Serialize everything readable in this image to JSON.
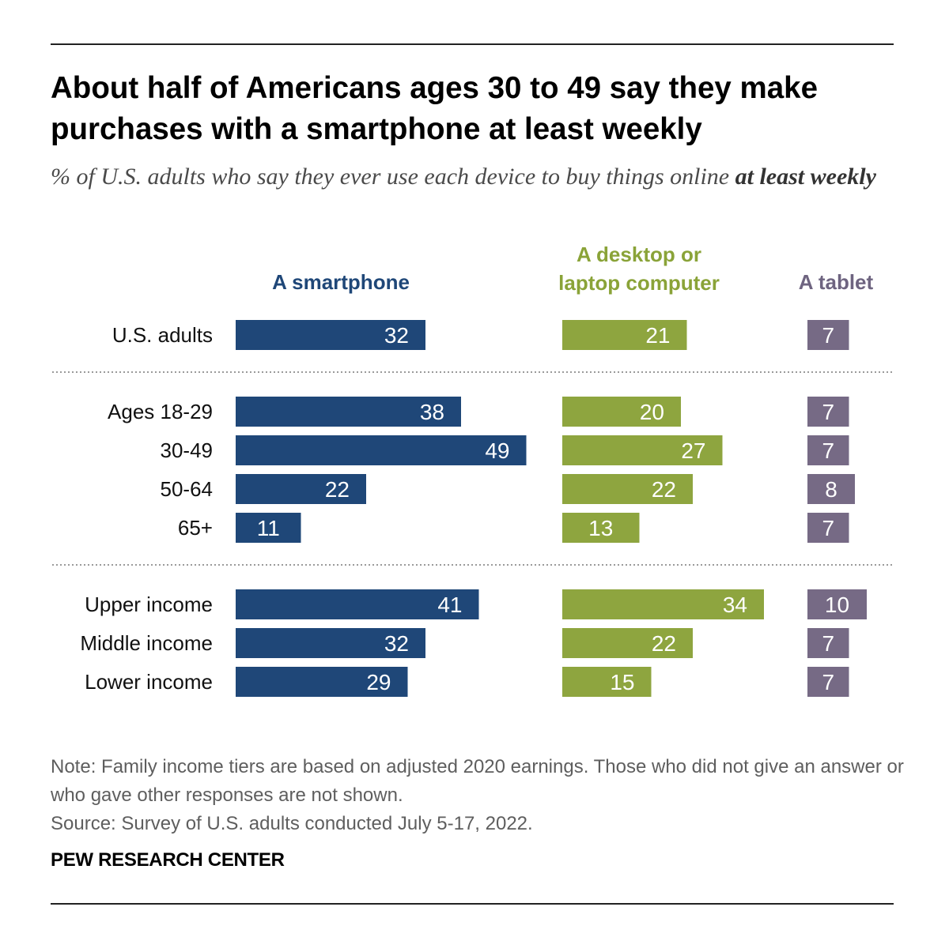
{
  "title": "About half of Americans ages 30 to 49 say they make purchases with a smartphone at least weekly",
  "subtitle_prefix": "% of U.S. adults who say they ever use each device to buy things online ",
  "subtitle_bold": "at least weekly",
  "note": "Note: Family income tiers are based on adjusted 2020 earnings. Those who did not give an answer or who gave other responses are not shown.",
  "source": "Source: Survey of U.S. adults conducted July 5-17, 2022.",
  "brand": "PEW RESEARCH CENTER",
  "colors": {
    "smartphone": "#1f4778",
    "desktop": "#8ea53f",
    "tablet": "#766a85",
    "smartphone_header": "#1f4778",
    "desktop_header": "#8aa338",
    "tablet_header": "#6e6480",
    "divider": "#9a9a9a"
  },
  "chart_data": {
    "type": "bar",
    "orientation": "horizontal",
    "categories": [
      "U.S. adults",
      "Ages 18-29",
      "30-49",
      "50-64",
      "65+",
      "Upper income",
      "Middle income",
      "Lower income"
    ],
    "groups": [
      [
        "U.S. adults"
      ],
      [
        "Ages 18-29",
        "30-49",
        "50-64",
        "65+"
      ],
      [
        "Upper income",
        "Middle income",
        "Lower income"
      ]
    ],
    "series": [
      {
        "name": "A smartphone",
        "header_lines": [
          "A smartphone"
        ],
        "values": [
          32,
          38,
          49,
          22,
          11,
          41,
          32,
          29
        ]
      },
      {
        "name": "A desktop or laptop computer",
        "header_lines": [
          "A desktop or",
          "laptop computer"
        ],
        "values": [
          21,
          20,
          27,
          22,
          13,
          34,
          22,
          15
        ]
      },
      {
        "name": "A tablet",
        "header_lines": [
          "A tablet"
        ],
        "values": [
          7,
          7,
          7,
          8,
          7,
          10,
          7,
          7
        ]
      }
    ],
    "unit": "%"
  }
}
